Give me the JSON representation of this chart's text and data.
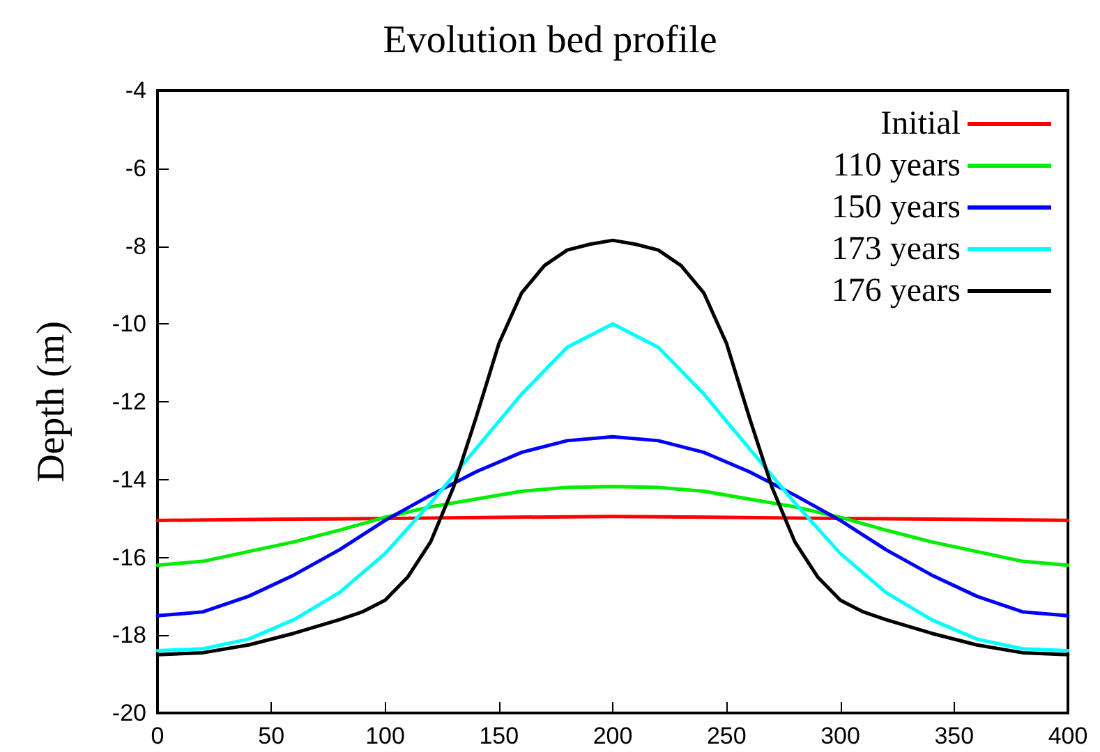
{
  "chart_data": {
    "type": "line",
    "title": "Evolution bed profile",
    "ylabel": "Depth (m)",
    "xlim": [
      0,
      400
    ],
    "xticks": [
      0,
      50,
      100,
      150,
      200,
      250,
      300,
      350,
      400
    ],
    "ylim": [
      -20,
      -4
    ],
    "yticks": [
      -20,
      -18,
      -16,
      -14,
      -12,
      -10,
      -8,
      -6,
      -4
    ],
    "grid": false,
    "legend": "top right",
    "marker": "none",
    "line_style": "solid",
    "series": [
      {
        "name": "Initial",
        "color": "#ff0000",
        "x": [
          0,
          50,
          100,
          150,
          200,
          250,
          300,
          350,
          400
        ],
        "values": [
          -15.05,
          -15.02,
          -15.0,
          -14.97,
          -14.95,
          -14.97,
          -15.0,
          -15.02,
          -15.05
        ]
      },
      {
        "name": "110 years",
        "color": "#00ee00",
        "x": [
          0,
          20,
          40,
          60,
          80,
          100,
          120,
          140,
          160,
          180,
          200,
          220,
          240,
          260,
          280,
          300,
          320,
          340,
          360,
          380,
          400
        ],
        "values": [
          -16.2,
          -16.1,
          -15.85,
          -15.6,
          -15.3,
          -14.97,
          -14.7,
          -14.5,
          -14.3,
          -14.2,
          -14.18,
          -14.2,
          -14.3,
          -14.5,
          -14.7,
          -14.97,
          -15.3,
          -15.6,
          -15.85,
          -16.1,
          -16.2
        ]
      },
      {
        "name": "150 years",
        "color": "#0000ff",
        "x": [
          0,
          20,
          40,
          60,
          80,
          100,
          120,
          140,
          160,
          180,
          200,
          220,
          240,
          260,
          280,
          300,
          320,
          340,
          360,
          380,
          400
        ],
        "values": [
          -17.5,
          -17.4,
          -17.0,
          -16.45,
          -15.8,
          -15.05,
          -14.4,
          -13.8,
          -13.3,
          -13.0,
          -12.9,
          -13.0,
          -13.3,
          -13.8,
          -14.4,
          -15.05,
          -15.8,
          -16.45,
          -17.0,
          -17.4,
          -17.5
        ]
      },
      {
        "name": "173 years",
        "color": "#00ffff",
        "x": [
          0,
          20,
          40,
          60,
          80,
          100,
          120,
          140,
          160,
          180,
          200,
          220,
          240,
          260,
          280,
          300,
          320,
          340,
          360,
          380,
          400
        ],
        "values": [
          -18.4,
          -18.35,
          -18.1,
          -17.6,
          -16.9,
          -15.9,
          -14.6,
          -13.2,
          -11.8,
          -10.6,
          -10.0,
          -10.6,
          -11.8,
          -13.2,
          -14.6,
          -15.9,
          -16.9,
          -17.6,
          -18.1,
          -18.35,
          -18.4
        ]
      },
      {
        "name": "176 years",
        "color": "#000000",
        "x": [
          0,
          20,
          40,
          60,
          80,
          90,
          100,
          110,
          120,
          130,
          140,
          150,
          160,
          170,
          180,
          190,
          200,
          210,
          220,
          230,
          240,
          250,
          260,
          270,
          280,
          290,
          300,
          310,
          320,
          340,
          360,
          380,
          400
        ],
        "values": [
          -18.5,
          -18.45,
          -18.25,
          -17.95,
          -17.6,
          -17.4,
          -17.1,
          -16.5,
          -15.6,
          -14.2,
          -12.4,
          -10.5,
          -9.2,
          -8.5,
          -8.1,
          -7.95,
          -7.85,
          -7.95,
          -8.1,
          -8.5,
          -9.2,
          -10.5,
          -12.4,
          -14.2,
          -15.6,
          -16.5,
          -17.1,
          -17.4,
          -17.6,
          -17.95,
          -18.25,
          -18.45,
          -18.5
        ]
      }
    ]
  }
}
